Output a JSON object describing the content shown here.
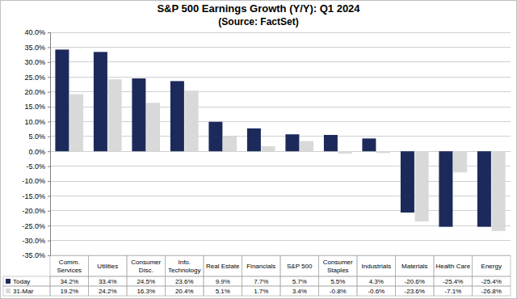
{
  "chart_data": {
    "type": "bar",
    "title": "S&P 500 Earnings Growth (Y/Y): Q1 2024",
    "subtitle": "(Source: FactSet)",
    "categories": [
      "Comm. Services",
      "Utilities",
      "Consumer Disc.",
      "Info. Technology",
      "Real Estate",
      "Financials",
      "S&P 500",
      "Consumer Staples",
      "Industrials",
      "Materials",
      "Health Care",
      "Energy"
    ],
    "series": [
      {
        "name": "Today",
        "color": "#1c2a5b",
        "values": [
          34.2,
          33.4,
          24.5,
          23.6,
          9.9,
          7.7,
          5.7,
          5.5,
          4.3,
          -20.6,
          -25.4,
          -25.4
        ],
        "value_labels": [
          "34.2%",
          "33.4%",
          "24.5%",
          "23.6%",
          "9.9%",
          "7.7%",
          "5.7%",
          "5.5%",
          "4.3%",
          "-20.6%",
          "-25.4%",
          "-25.4%"
        ]
      },
      {
        "name": "31-Mar",
        "color": "#d9d9d9",
        "values": [
          19.2,
          24.2,
          16.3,
          20.4,
          5.1,
          1.7,
          3.4,
          -0.8,
          -0.6,
          -23.6,
          -7.1,
          -26.8
        ],
        "value_labels": [
          "19.2%",
          "24.2%",
          "16.3%",
          "20.4%",
          "5.1%",
          "1.7%",
          "3.4%",
          "-0.8%",
          "-0.6%",
          "-23.6%",
          "-7.1%",
          "-26.8%"
        ]
      }
    ],
    "ylim": [
      -35,
      40
    ],
    "yticks": [
      {
        "value": -35,
        "label": "-35.0%"
      },
      {
        "value": -30,
        "label": "-30.0%"
      },
      {
        "value": -25,
        "label": "-25.0%"
      },
      {
        "value": -20,
        "label": "-20.0%"
      },
      {
        "value": -15,
        "label": "-15.0%"
      },
      {
        "value": -10,
        "label": "-10.0%"
      },
      {
        "value": -5,
        "label": "-5.0%"
      },
      {
        "value": 0,
        "label": "0.0%"
      },
      {
        "value": 5,
        "label": "5.0%"
      },
      {
        "value": 10,
        "label": "10.0%"
      },
      {
        "value": 15,
        "label": "15.0%"
      },
      {
        "value": 20,
        "label": "20.0%"
      },
      {
        "value": 25,
        "label": "25.0%"
      },
      {
        "value": 30,
        "label": "30.0%"
      },
      {
        "value": 35,
        "label": "35.0%"
      },
      {
        "value": 40,
        "label": "40.0%"
      }
    ],
    "grid": true
  }
}
